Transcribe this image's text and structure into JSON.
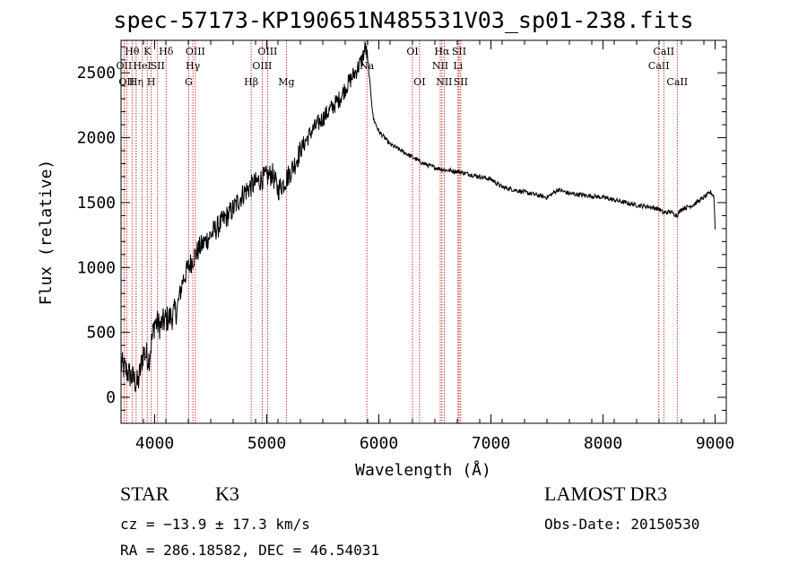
{
  "chart_data": {
    "type": "line",
    "title": "spec-57173-KP190651N485531V03_sp01-238.fits",
    "xlabel": "Wavelength (Å)",
    "ylabel": "Flux (relative)",
    "xlim": [
      3700,
      9100
    ],
    "ylim": [
      -200,
      2750
    ],
    "xticks": [
      4000,
      5000,
      6000,
      7000,
      8000,
      9000
    ],
    "yticks": [
      0,
      500,
      1000,
      1500,
      2000,
      2500
    ],
    "series": [
      {
        "name": "spectrum",
        "x": [
          3700,
          3750,
          3800,
          3850,
          3900,
          3950,
          4000,
          4050,
          4100,
          4150,
          4200,
          4250,
          4300,
          4350,
          4400,
          4450,
          4500,
          4550,
          4600,
          4650,
          4700,
          4750,
          4800,
          4850,
          4900,
          4950,
          5000,
          5050,
          5100,
          5150,
          5200,
          5250,
          5300,
          5350,
          5400,
          5450,
          5500,
          5550,
          5600,
          5650,
          5700,
          5750,
          5800,
          5850,
          5880,
          5900,
          5950,
          6000,
          6100,
          6200,
          6300,
          6400,
          6500,
          6600,
          6700,
          6800,
          6900,
          7000,
          7100,
          7200,
          7300,
          7400,
          7500,
          7600,
          7700,
          7800,
          7900,
          8000,
          8100,
          8200,
          8300,
          8400,
          8500,
          8540,
          8600,
          8660,
          8700,
          8800,
          8900,
          8960,
          8990,
          9000
        ],
        "y": [
          250,
          200,
          150,
          100,
          350,
          300,
          580,
          550,
          600,
          620,
          680,
          900,
          1000,
          1080,
          1150,
          1200,
          1250,
          1300,
          1350,
          1400,
          1450,
          1520,
          1580,
          1620,
          1650,
          1680,
          1700,
          1720,
          1600,
          1650,
          1720,
          1800,
          1900,
          1980,
          2050,
          2100,
          2150,
          2200,
          2250,
          2300,
          2380,
          2450,
          2520,
          2600,
          2700,
          2600,
          2150,
          2050,
          1950,
          1900,
          1850,
          1800,
          1770,
          1750,
          1740,
          1720,
          1700,
          1680,
          1620,
          1600,
          1580,
          1560,
          1540,
          1600,
          1570,
          1560,
          1550,
          1540,
          1520,
          1500,
          1480,
          1470,
          1450,
          1420,
          1430,
          1400,
          1450,
          1480,
          1540,
          1580,
          1550,
          1300
        ]
      }
    ],
    "lines": [
      {
        "wavelength": 3727,
        "label": "OII",
        "row": 2
      },
      {
        "wavelength": 3750,
        "label": "OII",
        "row": 3
      },
      {
        "wavelength": 3798,
        "label": "Hθ",
        "row": 1
      },
      {
        "wavelength": 3835,
        "label": "Hη",
        "row": 3
      },
      {
        "wavelength": 3889,
        "label": "HeI",
        "row": 2
      },
      {
        "wavelength": 3934,
        "label": "K",
        "row": 1
      },
      {
        "wavelength": 3969,
        "label": "H",
        "row": 3
      },
      {
        "wavelength": 4026,
        "label": "SII",
        "row": 2
      },
      {
        "wavelength": 4102,
        "label": "Hδ",
        "row": 1
      },
      {
        "wavelength": 4304,
        "label": "G",
        "row": 3
      },
      {
        "wavelength": 4341,
        "label": "Hγ",
        "row": 2
      },
      {
        "wavelength": 4363,
        "label": "OIII",
        "row": 1
      },
      {
        "wavelength": 4861,
        "label": "Hβ",
        "row": 3
      },
      {
        "wavelength": 4959,
        "label": "OIII",
        "row": 2
      },
      {
        "wavelength": 5007,
        "label": "OIII",
        "row": 1
      },
      {
        "wavelength": 5175,
        "label": "Mg",
        "row": 3
      },
      {
        "wavelength": 5893,
        "label": "Na",
        "row": 2
      },
      {
        "wavelength": 6300,
        "label": "OI",
        "row": 1
      },
      {
        "wavelength": 6363,
        "label": "OI",
        "row": 3
      },
      {
        "wavelength": 6548,
        "label": "NII",
        "row": 2
      },
      {
        "wavelength": 6563,
        "label": "Hα",
        "row": 1
      },
      {
        "wavelength": 6583,
        "label": "NII",
        "row": 3
      },
      {
        "wavelength": 6707,
        "label": "Li",
        "row": 2
      },
      {
        "wavelength": 6716,
        "label": "SII",
        "row": 1
      },
      {
        "wavelength": 6731,
        "label": "SII",
        "row": 3
      },
      {
        "wavelength": 8498,
        "label": "CaII",
        "row": 2
      },
      {
        "wavelength": 8542,
        "label": "CaII",
        "row": 1
      },
      {
        "wavelength": 8662,
        "label": "CaII",
        "row": 3
      }
    ]
  },
  "info": {
    "class": "STAR",
    "subclass": "K3",
    "survey": "LAMOST DR3",
    "cz": "cz = −13.9 ± 17.3 km/s",
    "obs_date": "Obs-Date: 20150530",
    "radec": "RA = 286.18582, DEC =  46.54031"
  }
}
